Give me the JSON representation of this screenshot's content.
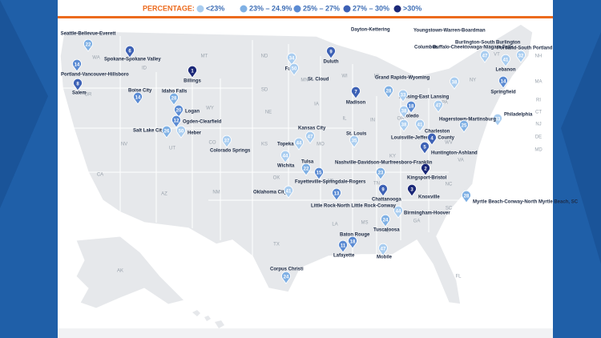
{
  "legend": {
    "title": "PERCENTAGE:",
    "items": [
      {
        "label": "<23%",
        "color": "#a9cdf0"
      },
      {
        "label": "23% – 24.9%",
        "color": "#7fb0e4"
      },
      {
        "label": "25% – 27%",
        "color": "#5b8bd3"
      },
      {
        "label": "27% – 30%",
        "color": "#3d61b5"
      },
      {
        "label": ">30%",
        "color": "#1b2878"
      }
    ]
  },
  "markers": [
    {
      "rank": 22,
      "label": "Seattle-Bellevue-Everett",
      "color": "#7fb0e4"
    },
    {
      "rank": 14,
      "label": "Portland-Vancouver-Hillsboro",
      "color": "#5b8bd3"
    },
    {
      "rank": 8,
      "label": "Salem",
      "color": "#3d61b5"
    },
    {
      "rank": 6,
      "label": "Spokane-Spokane Valley",
      "color": "#3d61b5"
    },
    {
      "rank": 14,
      "label": "Boise City",
      "color": "#5b8bd3"
    },
    {
      "rank": 1,
      "label": "Billings",
      "color": "#1b2878"
    },
    {
      "rank": 28,
      "label": "Idaho Falls",
      "color": "#7fb0e4"
    },
    {
      "rank": 20,
      "label": "Logan",
      "color": "#5b8bd3"
    },
    {
      "rank": 12,
      "label": "Ogden-Clearfield",
      "color": "#5b8bd3"
    },
    {
      "rank": 26,
      "label": "Salt Lake City",
      "color": "#7fb0e4"
    },
    {
      "rank": 50,
      "label": "Heber",
      "color": "#a9cdf0"
    },
    {
      "rank": 37,
      "label": "Colorado Springs",
      "color": "#a9cdf0"
    },
    {
      "rank": 34,
      "label": "Fargo",
      "color": "#a9cdf0"
    },
    {
      "rank": 9,
      "label": "Duluth",
      "color": "#3d61b5"
    },
    {
      "rank": 50,
      "label": "St. Cloud",
      "color": "#a9cdf0"
    },
    {
      "rank": 7,
      "label": "Madison",
      "color": "#3d61b5"
    },
    {
      "rank": 28,
      "label": "Grand Rapids-Wyoming",
      "color": "#7fb0e4"
    },
    {
      "rank": 33,
      "label": "Lansing-East Lansing",
      "color": "#a9cdf0"
    },
    {
      "rank": 18,
      "label": "Toledo",
      "color": "#5b8bd3"
    },
    {
      "rank": 38,
      "label": "Louisville-Jefferson County",
      "color": "#a9cdf0"
    },
    {
      "rank": 41,
      "label": "Columbus",
      "color": "#a9cdf0"
    },
    {
      "rank": 38,
      "label": "Dayton-Kettering",
      "color": "#a9cdf0"
    },
    {
      "rank": 38,
      "label": "Buffalo-Cheektowaga-Niagara Falls",
      "color": "#a9cdf0"
    },
    {
      "rank": 47,
      "label": "Youngstown-Warren-Boardman",
      "color": "#a9cdf0"
    },
    {
      "rank": 47,
      "label": "Burlington-South Burlington",
      "color": "#a9cdf0"
    },
    {
      "rank": 41,
      "label": "Lebanon",
      "color": "#a9cdf0"
    },
    {
      "rank": 32,
      "label": "Portland-South Portland",
      "color": "#a9cdf0"
    },
    {
      "rank": 14,
      "label": "Springfield",
      "color": "#5b8bd3"
    },
    {
      "rank": 33,
      "label": "Philadelphia",
      "color": "#a9cdf0"
    },
    {
      "rank": 25,
      "label": "Hagerstown-Martinsburg",
      "color": "#7fb0e4"
    },
    {
      "rank": 4,
      "label": "Charleston",
      "color": "#3d61b5"
    },
    {
      "rank": 5,
      "label": "Huntington-Ashland",
      "color": "#3d61b5"
    },
    {
      "rank": 2,
      "label": "Kingsport-Bristol",
      "color": "#1b2878"
    },
    {
      "rank": 3,
      "label": "Knoxville",
      "color": "#1b2878"
    },
    {
      "rank": 28,
      "label": "Myrtle Beach-Conway-North Myrtle Beach, SC",
      "color": "#7fb0e4"
    },
    {
      "rank": 23,
      "label": "Nashville-Davidson-Murfreesboro-Franklin",
      "color": "#7fb0e4"
    },
    {
      "rank": 9,
      "label": "Chattanooga",
      "color": "#3d61b5"
    },
    {
      "rank": 44,
      "label": "Birmingham-Hoover",
      "color": "#a9cdf0"
    },
    {
      "rank": 24,
      "label": "Tuscaloosa",
      "color": "#7fb0e4"
    },
    {
      "rank": 47,
      "label": "Mobile",
      "color": "#a9cdf0"
    },
    {
      "rank": 18,
      "label": "Baton Rouge",
      "color": "#5b8bd3"
    },
    {
      "rank": 11,
      "label": "Lafayette",
      "color": "#5b8bd3"
    },
    {
      "rank": 13,
      "label": "Little Rock-North Little Rock-Conway",
      "color": "#5b8bd3"
    },
    {
      "rank": 15,
      "label": "Fayetteville-Springdale-Rogers",
      "color": "#5b8bd3"
    },
    {
      "rank": 22,
      "label": "Tulsa",
      "color": "#7fb0e4"
    },
    {
      "rank": 41,
      "label": "Oklahoma City",
      "color": "#a9cdf0"
    },
    {
      "rank": 44,
      "label": "Topeka",
      "color": "#a9cdf0"
    },
    {
      "rank": 44,
      "label": "Wichita",
      "color": "#a9cdf0"
    },
    {
      "rank": 47,
      "label": "Kansas City",
      "color": "#a9cdf0"
    },
    {
      "rank": 35,
      "label": "St. Louis",
      "color": "#a9cdf0"
    },
    {
      "rank": 24,
      "label": "Corpus Christi",
      "color": "#7fb0e4"
    }
  ],
  "state_labels": [
    "WA",
    "OR",
    "ID",
    "MT",
    "ND",
    "MN",
    "WI",
    "MI",
    "SD",
    "WY",
    "NE",
    "IA",
    "IL",
    "IN",
    "OH",
    "PA",
    "NY",
    "NV",
    "UT",
    "CO",
    "KS",
    "MO",
    "KY",
    "WV",
    "VA",
    "CA",
    "AZ",
    "NM",
    "OK",
    "AR",
    "TN",
    "NC",
    "SC",
    "TX",
    "LA",
    "MS",
    "AL",
    "GA",
    "FL",
    "AK",
    "NH",
    "MA",
    "RI",
    "CT",
    "NJ",
    "DE",
    "MD",
    "VT"
  ]
}
